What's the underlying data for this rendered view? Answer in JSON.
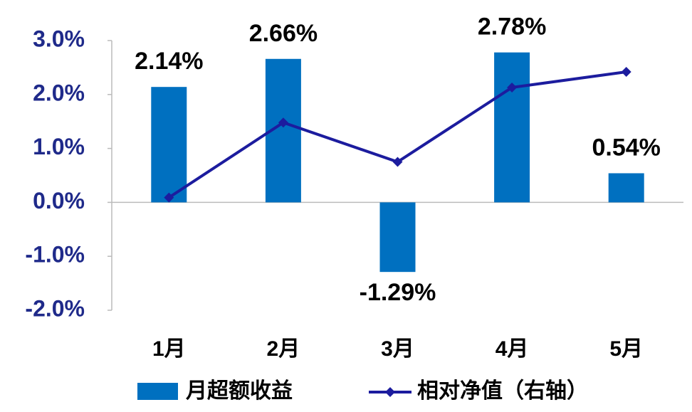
{
  "chart_data": {
    "type": "bar",
    "categories": [
      "1月",
      "2月",
      "3月",
      "4月",
      "5月"
    ],
    "series": [
      {
        "name": "月超额收益",
        "type": "bar",
        "color": "#0070c0",
        "values": [
          2.14,
          2.66,
          -1.29,
          2.78,
          0.54
        ],
        "value_labels": [
          "2.14%",
          "2.66%",
          "-1.29%",
          "2.78%",
          "0.54%"
        ]
      },
      {
        "name": "相对净值（右轴）",
        "type": "line",
        "color": "#1c1c9e",
        "values": [
          0.09,
          1.48,
          0.75,
          2.13,
          2.42
        ]
      }
    ],
    "ylim": [
      -2,
      3
    ],
    "yticks": [
      {
        "value": 3,
        "label": "3.0%"
      },
      {
        "value": 2,
        "label": "2.0%"
      },
      {
        "value": 1,
        "label": "1.0%"
      },
      {
        "value": 0,
        "label": "0.0%"
      },
      {
        "value": -1,
        "label": "-1.0%"
      },
      {
        "value": -2,
        "label": "-2.0%"
      }
    ]
  }
}
